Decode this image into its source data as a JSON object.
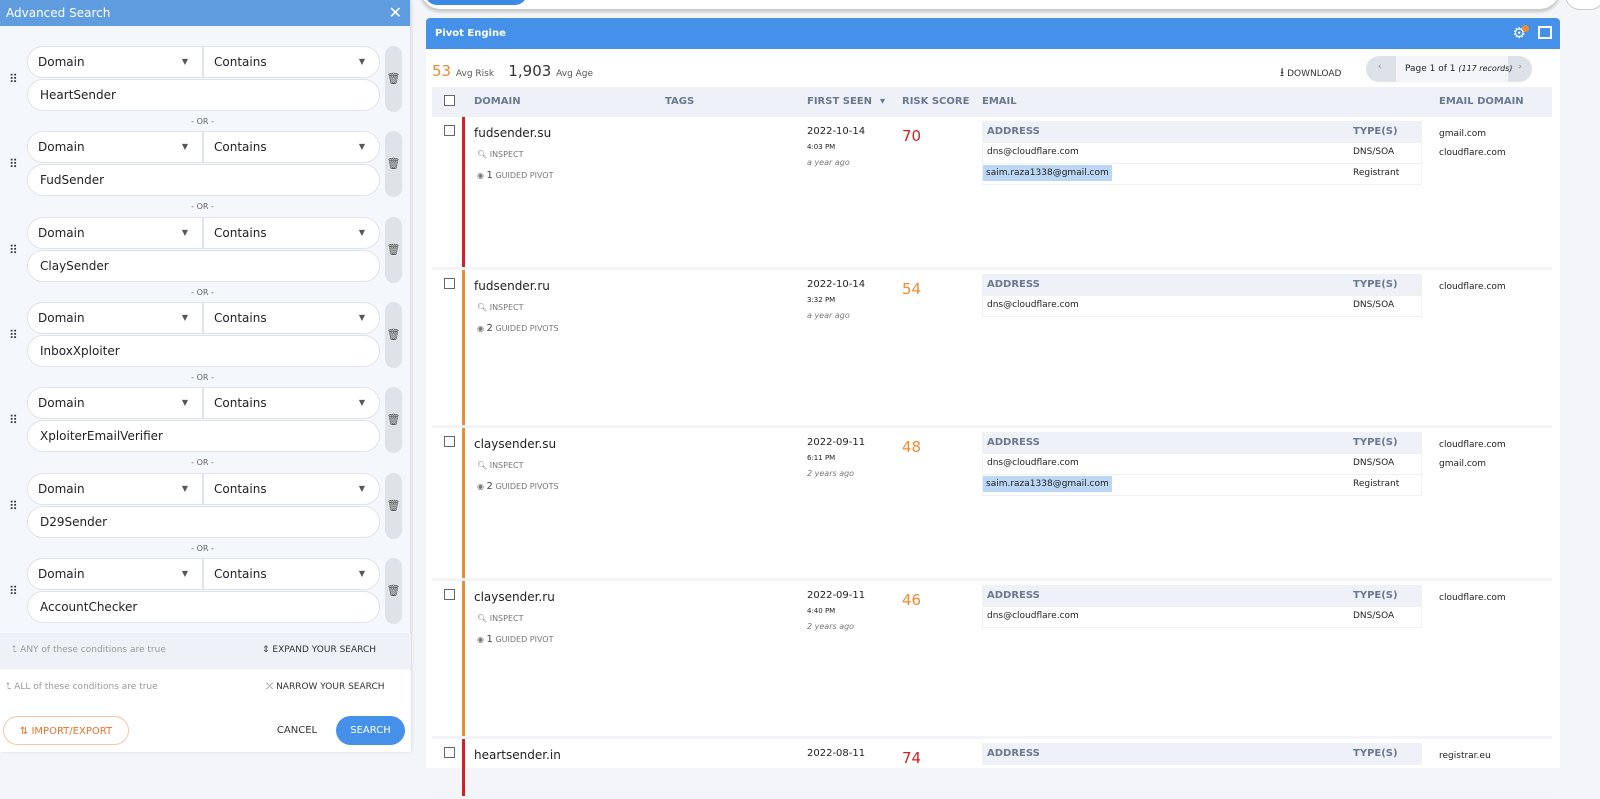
{
  "advanced_search": {
    "title": "Advanced Search",
    "close": "✕",
    "conditions": [
      {
        "field": "Domain",
        "operator": "Contains",
        "value": "HeartSender"
      },
      {
        "field": "Domain",
        "operator": "Contains",
        "value": "FudSender"
      },
      {
        "field": "Domain",
        "operator": "Contains",
        "value": "ClaySender"
      },
      {
        "field": "Domain",
        "operator": "Contains",
        "value": "InboxXploiter"
      },
      {
        "field": "Domain",
        "operator": "Contains",
        "value": "XploiterEmailVerifier"
      },
      {
        "field": "Domain",
        "operator": "Contains",
        "value": "D29Sender"
      },
      {
        "field": "Domain",
        "operator": "Contains",
        "value": "AccountChecker"
      }
    ],
    "or_label": "- OR -",
    "any_label": "ANY of these conditions are true",
    "expand_label": "EXPAND YOUR SEARCH",
    "all_label": "ALL of these conditions are true",
    "narrow_label": "NARROW YOUR SEARCH",
    "import_export": "IMPORT/EXPORT",
    "cancel": "CANCEL",
    "search": "SEARCH"
  },
  "pivot": {
    "title": "Pivot Engine",
    "avg_risk": "53",
    "avg_risk_label": "Avg Risk",
    "avg_age": "1,903",
    "avg_age_label": "Avg Age",
    "download": "DOWNLOAD",
    "page": "Page 1 of 1",
    "records": "(117 records)",
    "columns": {
      "domain": "DOMAIN",
      "tags": "TAGS",
      "first_seen": "FIRST SEEN",
      "risk": "RISK SCORE",
      "email": "EMAIL",
      "email_domain": "EMAIL DOMAIN"
    },
    "inspect": "INSPECT",
    "addr_header": "ADDRESS",
    "types_header": "TYPE(S)",
    "rows": [
      {
        "domain": "fudsender.su",
        "pivots": "1",
        "pivot_label": "GUIDED PIVOT",
        "date": "2022-10-14",
        "time": "4:03 PM",
        "ago": "a year ago",
        "risk": "70",
        "risk_color": "#d42020",
        "emails": [
          {
            "address": "dns@cloudflare.com",
            "type": "DNS/SOA"
          },
          {
            "address": "saim.raza1338@gmail.com",
            "type": "Registrant",
            "highlight": true
          }
        ],
        "email_domains": [
          "gmail.com",
          "cloudflare.com"
        ]
      },
      {
        "domain": "fudsender.ru",
        "pivots": "2",
        "pivot_label": "GUIDED PIVOTS",
        "date": "2022-10-14",
        "time": "3:32 PM",
        "ago": "a year ago",
        "risk": "54",
        "risk_color": "#f08a30",
        "emails": [
          {
            "address": "dns@cloudflare.com",
            "type": "DNS/SOA"
          }
        ],
        "email_domains": [
          "cloudflare.com"
        ]
      },
      {
        "domain": "claysender.su",
        "pivots": "2",
        "pivot_label": "GUIDED PIVOTS",
        "date": "2022-09-11",
        "time": "6:11 PM",
        "ago": "2 years ago",
        "risk": "48",
        "risk_color": "#f08a30",
        "emails": [
          {
            "address": "dns@cloudflare.com",
            "type": "DNS/SOA"
          },
          {
            "address": "saim.raza1338@gmail.com",
            "type": "Registrant",
            "highlight": true
          }
        ],
        "email_domains": [
          "cloudflare.com",
          "gmail.com"
        ]
      },
      {
        "domain": "claysender.ru",
        "pivots": "1",
        "pivot_label": "GUIDED PIVOT",
        "date": "2022-09-11",
        "time": "4:40 PM",
        "ago": "2 years ago",
        "risk": "46",
        "risk_color": "#f08a30",
        "emails": [
          {
            "address": "dns@cloudflare.com",
            "type": "DNS/SOA"
          }
        ],
        "email_domains": [
          "cloudflare.com"
        ]
      },
      {
        "domain": "heartsender.in",
        "pivots": "",
        "pivot_label": "",
        "date": "2022-08-11",
        "time": "",
        "ago": "",
        "risk": "74",
        "risk_color": "#d42020",
        "emails": [],
        "email_domains": [
          "registrar.eu"
        ]
      }
    ]
  }
}
